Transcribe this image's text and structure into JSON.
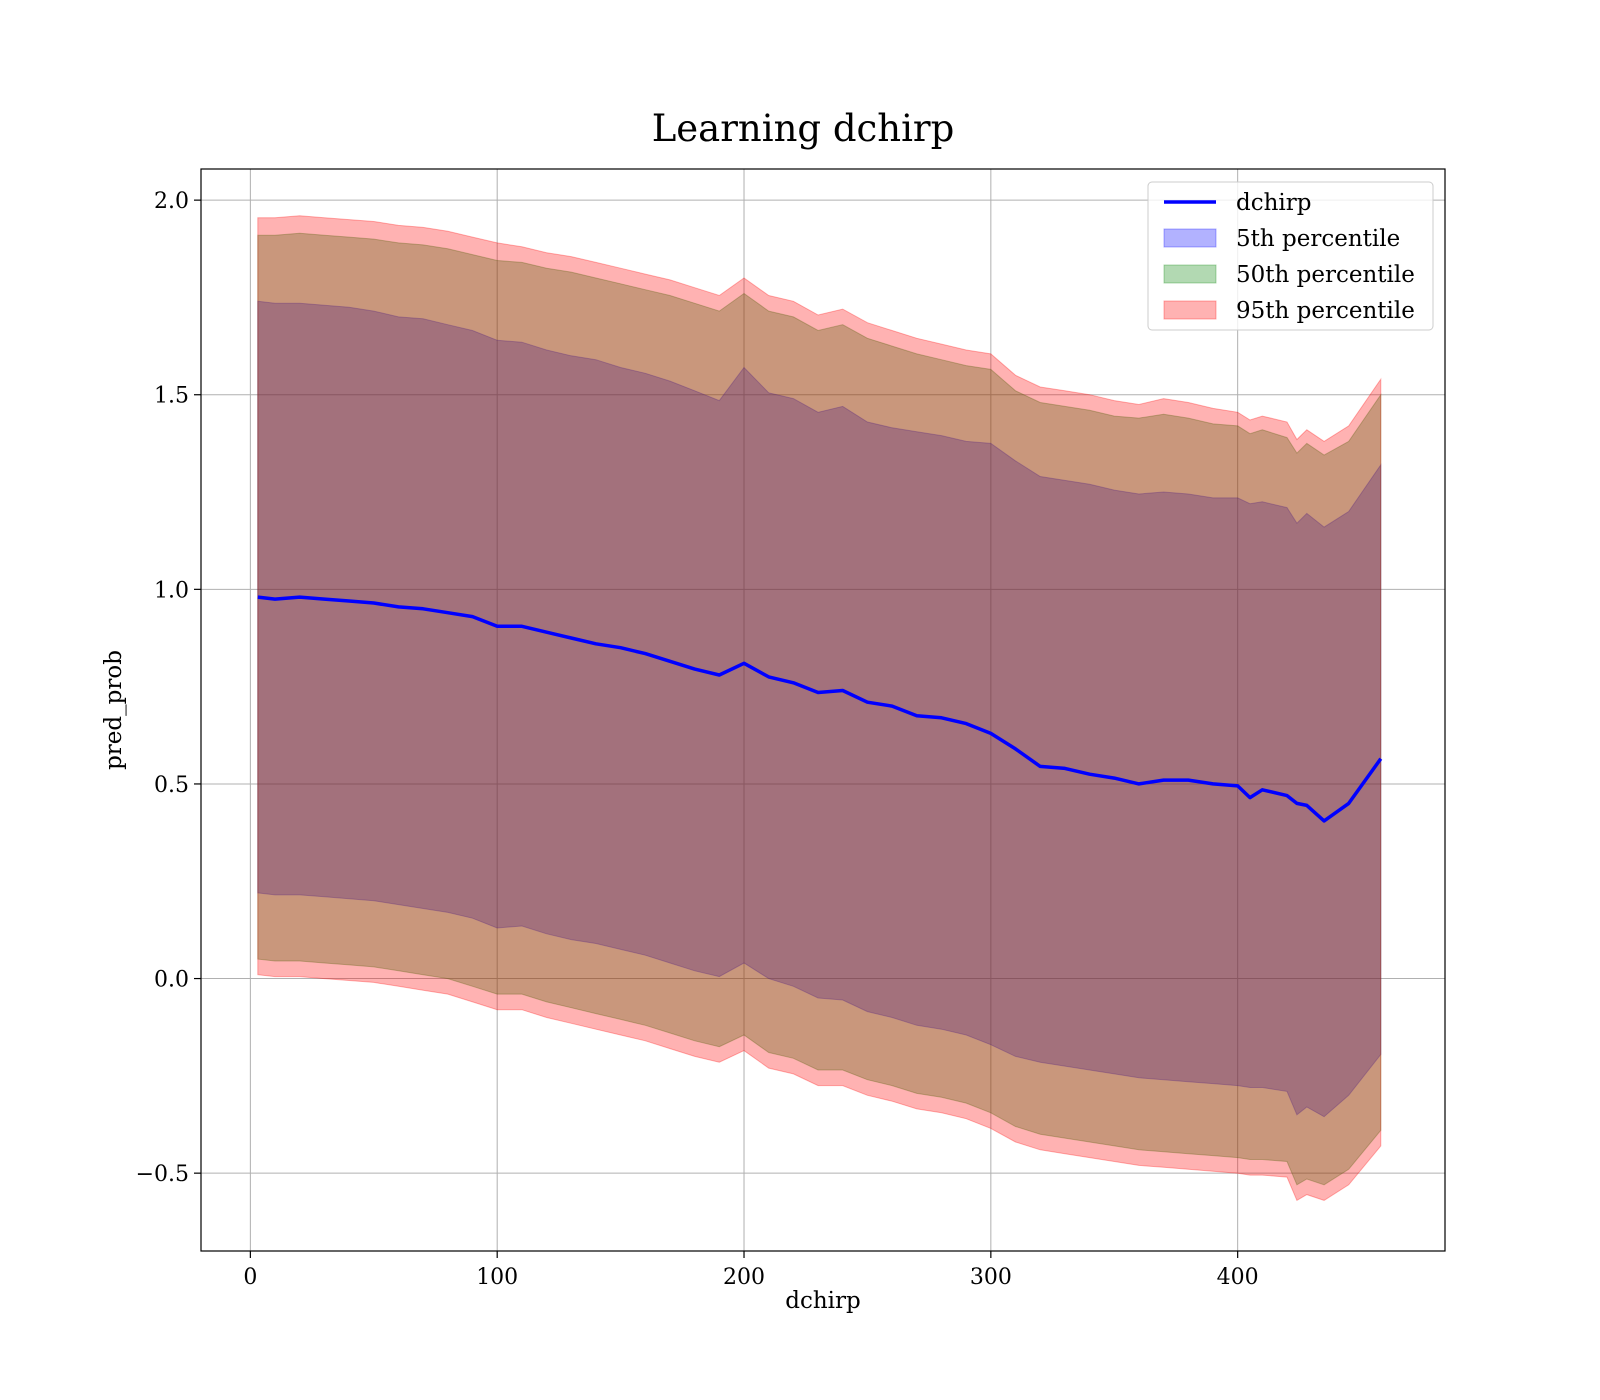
{
  "chart_data": {
    "type": "area",
    "title": "Learning dchirp",
    "xlabel": "dchirp",
    "ylabel": "pred_prob",
    "xlim": [
      -20,
      484
    ],
    "ylim": [
      -0.7,
      2.08
    ],
    "xticks": [
      0,
      100,
      200,
      300,
      400
    ],
    "yticks": [
      -0.5,
      0.0,
      0.5,
      1.0,
      1.5,
      2.0
    ],
    "xtick_labels": [
      "0",
      "100",
      "200",
      "300",
      "400"
    ],
    "ytick_labels": [
      "−0.5",
      "0.0",
      "0.5",
      "1.0",
      "1.5",
      "2.0"
    ],
    "grid": true,
    "legend_position": "top-right",
    "x": [
      3,
      10,
      20,
      30,
      40,
      50,
      60,
      70,
      80,
      90,
      100,
      110,
      120,
      130,
      140,
      150,
      160,
      170,
      180,
      190,
      200,
      210,
      220,
      230,
      240,
      250,
      260,
      270,
      280,
      290,
      300,
      310,
      320,
      330,
      340,
      350,
      360,
      370,
      380,
      390,
      400,
      405,
      410,
      420,
      424,
      428,
      435,
      445,
      458
    ],
    "series": [
      {
        "name": "dchirp",
        "kind": "line",
        "color": "#0000ff",
        "values": [
          0.98,
          0.975,
          0.98,
          0.975,
          0.97,
          0.965,
          0.955,
          0.95,
          0.94,
          0.93,
          0.905,
          0.905,
          0.89,
          0.875,
          0.86,
          0.85,
          0.835,
          0.815,
          0.795,
          0.78,
          0.81,
          0.775,
          0.76,
          0.735,
          0.74,
          0.71,
          0.7,
          0.675,
          0.67,
          0.655,
          0.63,
          0.59,
          0.545,
          0.54,
          0.525,
          0.515,
          0.5,
          0.51,
          0.51,
          0.5,
          0.495,
          0.465,
          0.485,
          0.47,
          0.45,
          0.445,
          0.405,
          0.45,
          0.565
        ]
      },
      {
        "name": "5th percentile",
        "kind": "band",
        "color": "#0000ff",
        "upper": [
          1.74,
          1.735,
          1.735,
          1.73,
          1.725,
          1.715,
          1.7,
          1.695,
          1.68,
          1.665,
          1.64,
          1.635,
          1.615,
          1.6,
          1.59,
          1.57,
          1.555,
          1.535,
          1.51,
          1.485,
          1.57,
          1.505,
          1.49,
          1.455,
          1.47,
          1.43,
          1.415,
          1.405,
          1.395,
          1.38,
          1.375,
          1.33,
          1.29,
          1.28,
          1.27,
          1.255,
          1.245,
          1.25,
          1.245,
          1.235,
          1.235,
          1.22,
          1.225,
          1.21,
          1.17,
          1.195,
          1.16,
          1.2,
          1.32
        ],
        "lower": [
          0.22,
          0.215,
          0.215,
          0.21,
          0.205,
          0.2,
          0.19,
          0.18,
          0.17,
          0.155,
          0.13,
          0.135,
          0.115,
          0.1,
          0.09,
          0.075,
          0.06,
          0.04,
          0.02,
          0.005,
          0.04,
          0.0,
          -0.02,
          -0.05,
          -0.055,
          -0.085,
          -0.1,
          -0.12,
          -0.13,
          -0.145,
          -0.17,
          -0.2,
          -0.215,
          -0.225,
          -0.235,
          -0.245,
          -0.255,
          -0.26,
          -0.265,
          -0.27,
          -0.275,
          -0.28,
          -0.28,
          -0.29,
          -0.35,
          -0.33,
          -0.355,
          -0.3,
          -0.195
        ]
      },
      {
        "name": "50th percentile",
        "kind": "band",
        "color": "#008000",
        "upper": [
          1.91,
          1.91,
          1.915,
          1.91,
          1.905,
          1.9,
          1.89,
          1.885,
          1.875,
          1.86,
          1.845,
          1.84,
          1.825,
          1.815,
          1.8,
          1.785,
          1.77,
          1.755,
          1.735,
          1.715,
          1.76,
          1.715,
          1.7,
          1.665,
          1.68,
          1.645,
          1.625,
          1.605,
          1.59,
          1.575,
          1.565,
          1.51,
          1.48,
          1.47,
          1.46,
          1.445,
          1.44,
          1.45,
          1.44,
          1.425,
          1.42,
          1.4,
          1.41,
          1.39,
          1.35,
          1.375,
          1.345,
          1.38,
          1.5
        ],
        "lower": [
          0.05,
          0.045,
          0.045,
          0.04,
          0.035,
          0.03,
          0.02,
          0.01,
          0.0,
          -0.02,
          -0.04,
          -0.04,
          -0.06,
          -0.075,
          -0.09,
          -0.105,
          -0.12,
          -0.14,
          -0.16,
          -0.175,
          -0.145,
          -0.19,
          -0.205,
          -0.235,
          -0.235,
          -0.26,
          -0.275,
          -0.295,
          -0.305,
          -0.32,
          -0.345,
          -0.38,
          -0.4,
          -0.41,
          -0.42,
          -0.43,
          -0.44,
          -0.445,
          -0.45,
          -0.455,
          -0.46,
          -0.465,
          -0.465,
          -0.47,
          -0.53,
          -0.515,
          -0.53,
          -0.49,
          -0.39
        ]
      },
      {
        "name": "95th percentile",
        "kind": "band",
        "color": "#ff0000",
        "upper": [
          1.955,
          1.955,
          1.96,
          1.955,
          1.95,
          1.945,
          1.935,
          1.93,
          1.92,
          1.905,
          1.89,
          1.88,
          1.865,
          1.855,
          1.84,
          1.825,
          1.81,
          1.795,
          1.775,
          1.755,
          1.8,
          1.755,
          1.74,
          1.705,
          1.72,
          1.685,
          1.665,
          1.645,
          1.63,
          1.615,
          1.605,
          1.55,
          1.52,
          1.51,
          1.5,
          1.485,
          1.475,
          1.49,
          1.48,
          1.465,
          1.455,
          1.435,
          1.445,
          1.43,
          1.385,
          1.41,
          1.38,
          1.42,
          1.54
        ],
        "lower": [
          0.01,
          0.005,
          0.005,
          0.0,
          -0.005,
          -0.01,
          -0.02,
          -0.03,
          -0.04,
          -0.06,
          -0.08,
          -0.08,
          -0.1,
          -0.115,
          -0.13,
          -0.145,
          -0.16,
          -0.18,
          -0.2,
          -0.215,
          -0.185,
          -0.23,
          -0.245,
          -0.275,
          -0.275,
          -0.3,
          -0.315,
          -0.335,
          -0.345,
          -0.36,
          -0.385,
          -0.42,
          -0.44,
          -0.45,
          -0.46,
          -0.47,
          -0.48,
          -0.485,
          -0.49,
          -0.495,
          -0.5,
          -0.505,
          -0.505,
          -0.51,
          -0.57,
          -0.555,
          -0.57,
          -0.53,
          -0.43
        ]
      }
    ]
  }
}
